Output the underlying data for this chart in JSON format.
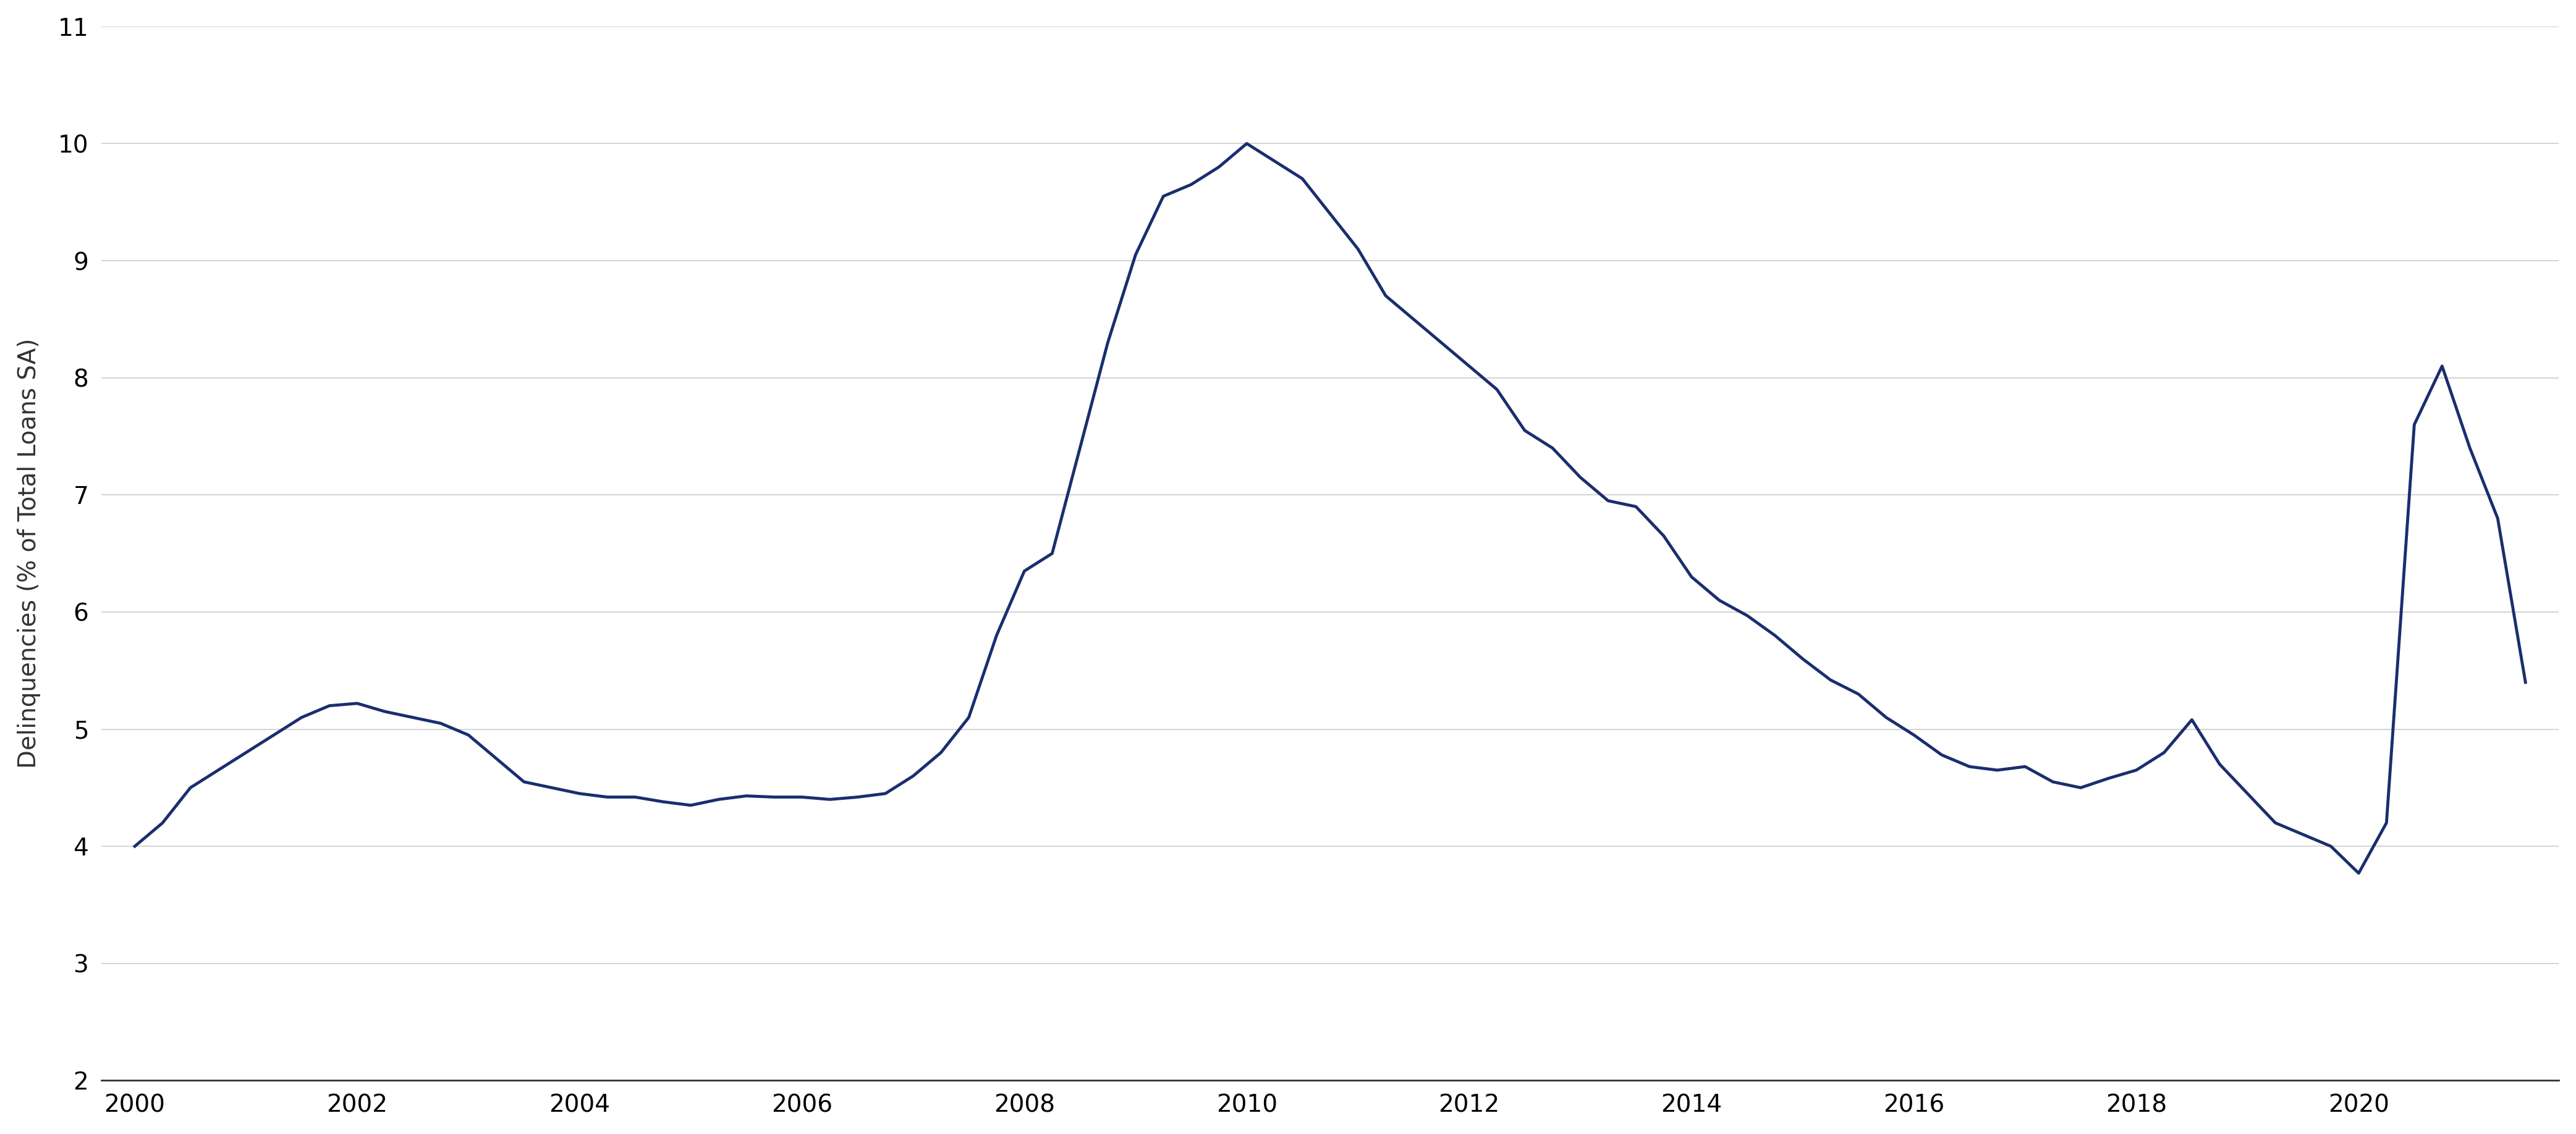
{
  "ylabel": "Delinquencies (% of Total Loans SA)",
  "line_color": "#1a2e6e",
  "line_width": 3.5,
  "background_color": "#ffffff",
  "grid_color": "#cccccc",
  "ylim": [
    2,
    11
  ],
  "yticks": [
    2,
    3,
    4,
    5,
    6,
    7,
    8,
    9,
    10,
    11
  ],
  "xtick_labels": [
    "2000",
    "2002",
    "2004",
    "2006",
    "2008",
    "2010",
    "2012",
    "2014",
    "2016",
    "2018",
    "2020"
  ],
  "x": [
    2000.0,
    2000.25,
    2000.5,
    2000.75,
    2001.0,
    2001.25,
    2001.5,
    2001.75,
    2002.0,
    2002.25,
    2002.5,
    2002.75,
    2003.0,
    2003.25,
    2003.5,
    2003.75,
    2004.0,
    2004.25,
    2004.5,
    2004.75,
    2005.0,
    2005.25,
    2005.5,
    2005.75,
    2006.0,
    2006.25,
    2006.5,
    2006.75,
    2007.0,
    2007.25,
    2007.5,
    2007.75,
    2008.0,
    2008.25,
    2008.5,
    2008.75,
    2009.0,
    2009.25,
    2009.5,
    2009.75,
    2010.0,
    2010.25,
    2010.5,
    2010.75,
    2011.0,
    2011.25,
    2011.5,
    2011.75,
    2012.0,
    2012.25,
    2012.5,
    2012.75,
    2013.0,
    2013.25,
    2013.5,
    2013.75,
    2014.0,
    2014.25,
    2014.5,
    2014.75,
    2015.0,
    2015.25,
    2015.5,
    2015.75,
    2016.0,
    2016.25,
    2016.5,
    2016.75,
    2017.0,
    2017.25,
    2017.5,
    2017.75,
    2018.0,
    2018.25,
    2018.5,
    2018.75,
    2019.0,
    2019.25,
    2019.5,
    2019.75,
    2020.0,
    2020.25,
    2020.5,
    2020.75,
    2021.0,
    2021.25,
    2021.5
  ],
  "y": [
    4.0,
    4.2,
    4.5,
    4.65,
    4.8,
    4.95,
    5.1,
    5.2,
    5.22,
    5.15,
    5.1,
    5.05,
    4.95,
    4.75,
    4.55,
    4.5,
    4.45,
    4.42,
    4.42,
    4.38,
    4.35,
    4.4,
    4.43,
    4.42,
    4.42,
    4.4,
    4.42,
    4.45,
    4.6,
    4.8,
    5.1,
    5.8,
    6.35,
    6.5,
    7.4,
    8.3,
    9.05,
    9.55,
    9.65,
    9.8,
    10.0,
    9.85,
    9.7,
    9.4,
    9.1,
    8.7,
    8.5,
    8.3,
    8.1,
    7.9,
    7.55,
    7.4,
    7.15,
    6.95,
    6.9,
    6.65,
    6.3,
    6.1,
    5.97,
    5.8,
    5.6,
    5.42,
    5.3,
    5.1,
    4.95,
    4.78,
    4.68,
    4.65,
    4.68,
    4.55,
    4.5,
    4.58,
    4.65,
    4.8,
    5.08,
    4.7,
    4.45,
    4.2,
    4.1,
    4.0,
    3.77,
    4.2,
    7.6,
    8.1,
    7.4,
    6.8,
    5.4
  ]
}
